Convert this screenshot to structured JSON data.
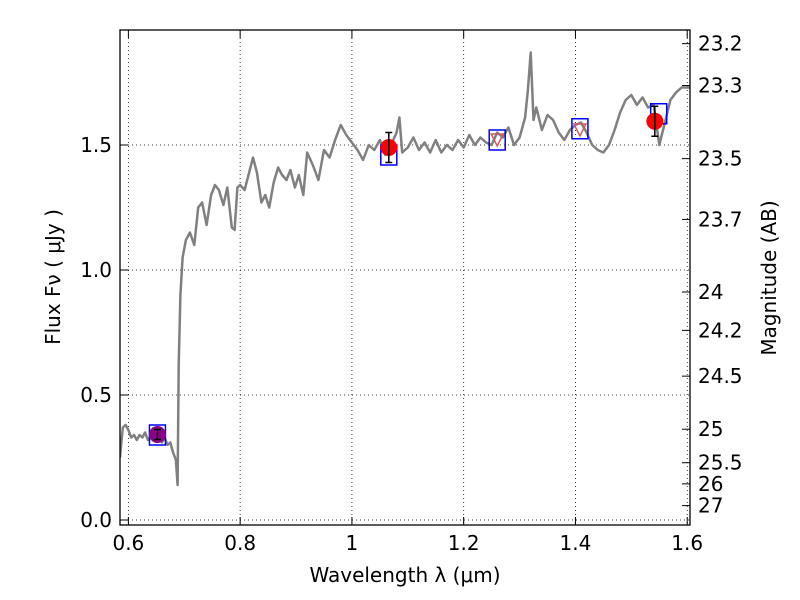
{
  "chart_data": {
    "type": "line",
    "xlabel": "Wavelength  λ (μm)",
    "ylabel": "Flux  Fν  ( μJy )",
    "y2label": "Magnitude (AB)",
    "xlim": [
      0.585,
      1.605
    ],
    "ylim": [
      -0.02,
      1.96
    ],
    "grid": true,
    "x_ticks": [
      {
        "value": 0.6,
        "label": "0.6"
      },
      {
        "value": 0.8,
        "label": "0.8"
      },
      {
        "value": 1.0,
        "label": "1"
      },
      {
        "value": 1.2,
        "label": "1.2"
      },
      {
        "value": 1.4,
        "label": "1.4"
      },
      {
        "value": 1.6,
        "label": "1.6"
      }
    ],
    "y_ticks": [
      {
        "value": 0.0,
        "label": "0.0"
      },
      {
        "value": 0.5,
        "label": "0.5"
      },
      {
        "value": 1.0,
        "label": "1.0"
      },
      {
        "value": 1.5,
        "label": "1.5"
      }
    ],
    "mag_ticks": [
      {
        "mag": 23.2,
        "label": "23.2"
      },
      {
        "mag": 23.3,
        "label": "23.3"
      },
      {
        "mag": 23.5,
        "label": "23.5"
      },
      {
        "mag": 23.7,
        "label": "23.7"
      },
      {
        "mag": 24.0,
        "label": "24"
      },
      {
        "mag": 24.2,
        "label": "24.2"
      },
      {
        "mag": 24.5,
        "label": "24.5"
      },
      {
        "mag": 25.0,
        "label": "25"
      },
      {
        "mag": 25.5,
        "label": "25.5"
      },
      {
        "mag": 26.0,
        "label": "26"
      },
      {
        "mag": 27.0,
        "label": "27"
      }
    ],
    "series": [
      {
        "type": "line",
        "color": "#808080",
        "x": [
          0.585,
          0.59,
          0.595,
          0.6,
          0.605,
          0.61,
          0.615,
          0.62,
          0.625,
          0.63,
          0.635,
          0.64,
          0.645,
          0.65,
          0.655,
          0.66,
          0.665,
          0.67,
          0.675,
          0.68,
          0.685,
          0.688,
          0.69,
          0.693,
          0.697,
          0.703,
          0.71,
          0.718,
          0.725,
          0.732,
          0.74,
          0.748,
          0.755,
          0.762,
          0.77,
          0.777,
          0.785,
          0.79,
          0.795,
          0.8,
          0.808,
          0.815,
          0.823,
          0.83,
          0.838,
          0.845,
          0.852,
          0.86,
          0.868,
          0.875,
          0.883,
          0.89,
          0.898,
          0.905,
          0.913,
          0.92,
          0.93,
          0.94,
          0.95,
          0.96,
          0.97,
          0.98,
          0.99,
          1.0,
          1.01,
          1.02,
          1.03,
          1.04,
          1.05,
          1.06,
          1.07,
          1.08,
          1.085,
          1.09,
          1.1,
          1.11,
          1.12,
          1.13,
          1.14,
          1.15,
          1.16,
          1.17,
          1.18,
          1.19,
          1.2,
          1.21,
          1.22,
          1.23,
          1.24,
          1.25,
          1.26,
          1.27,
          1.28,
          1.29,
          1.3,
          1.31,
          1.315,
          1.32,
          1.325,
          1.33,
          1.34,
          1.35,
          1.36,
          1.37,
          1.38,
          1.39,
          1.4,
          1.41,
          1.42,
          1.43,
          1.44,
          1.45,
          1.46,
          1.47,
          1.48,
          1.49,
          1.5,
          1.51,
          1.52,
          1.53,
          1.54,
          1.55,
          1.56,
          1.57,
          1.58,
          1.59,
          1.6,
          1.605
        ],
        "y": [
          0.25,
          0.37,
          0.38,
          0.36,
          0.33,
          0.34,
          0.32,
          0.34,
          0.33,
          0.35,
          0.32,
          0.33,
          0.36,
          0.33,
          0.34,
          0.31,
          0.33,
          0.3,
          0.31,
          0.27,
          0.24,
          0.14,
          0.62,
          0.9,
          1.05,
          1.12,
          1.15,
          1.1,
          1.25,
          1.27,
          1.18,
          1.3,
          1.34,
          1.32,
          1.26,
          1.33,
          1.17,
          1.16,
          1.33,
          1.34,
          1.32,
          1.38,
          1.45,
          1.39,
          1.27,
          1.3,
          1.25,
          1.35,
          1.41,
          1.38,
          1.36,
          1.4,
          1.33,
          1.38,
          1.3,
          1.47,
          1.42,
          1.36,
          1.48,
          1.45,
          1.52,
          1.58,
          1.54,
          1.51,
          1.48,
          1.44,
          1.5,
          1.48,
          1.52,
          1.46,
          1.5,
          1.55,
          1.61,
          1.47,
          1.49,
          1.53,
          1.48,
          1.51,
          1.47,
          1.52,
          1.47,
          1.5,
          1.48,
          1.52,
          1.49,
          1.54,
          1.5,
          1.53,
          1.51,
          1.5,
          1.55,
          1.53,
          1.57,
          1.5,
          1.53,
          1.61,
          1.72,
          1.87,
          1.6,
          1.65,
          1.56,
          1.62,
          1.6,
          1.55,
          1.52,
          1.56,
          1.58,
          1.59,
          1.55,
          1.5,
          1.48,
          1.47,
          1.5,
          1.56,
          1.63,
          1.68,
          1.7,
          1.66,
          1.69,
          1.65,
          1.66,
          1.5,
          1.59,
          1.68,
          1.71,
          1.73,
          1.73,
          1.73
        ]
      },
      {
        "type": "points",
        "name": "observed",
        "marker": "circle",
        "color": "#ff0000",
        "points": [
          {
            "x": 0.652,
            "y": 0.342,
            "err": 0.02,
            "color": "#8b008b"
          },
          {
            "x": 1.066,
            "y": 1.49,
            "err": 0.06,
            "color": "#ff0000"
          },
          {
            "x": 1.542,
            "y": 1.595,
            "err": 0.06,
            "color": "#ff0000"
          }
        ]
      },
      {
        "type": "points",
        "name": "model",
        "marker": "square",
        "color": "#0000ff",
        "points": [
          {
            "x": 0.652,
            "y": 0.34
          },
          {
            "x": 1.066,
            "y": 1.46
          },
          {
            "x": 1.26,
            "y": 1.52
          },
          {
            "x": 1.408,
            "y": 1.565
          },
          {
            "x": 1.549,
            "y": 1.625
          }
        ]
      },
      {
        "type": "points",
        "name": "triangles",
        "marker": "triangle-down",
        "color": "#cd5c5c",
        "points": [
          {
            "x": 1.26,
            "y": 1.52
          },
          {
            "x": 1.408,
            "y": 1.56
          }
        ]
      }
    ]
  }
}
